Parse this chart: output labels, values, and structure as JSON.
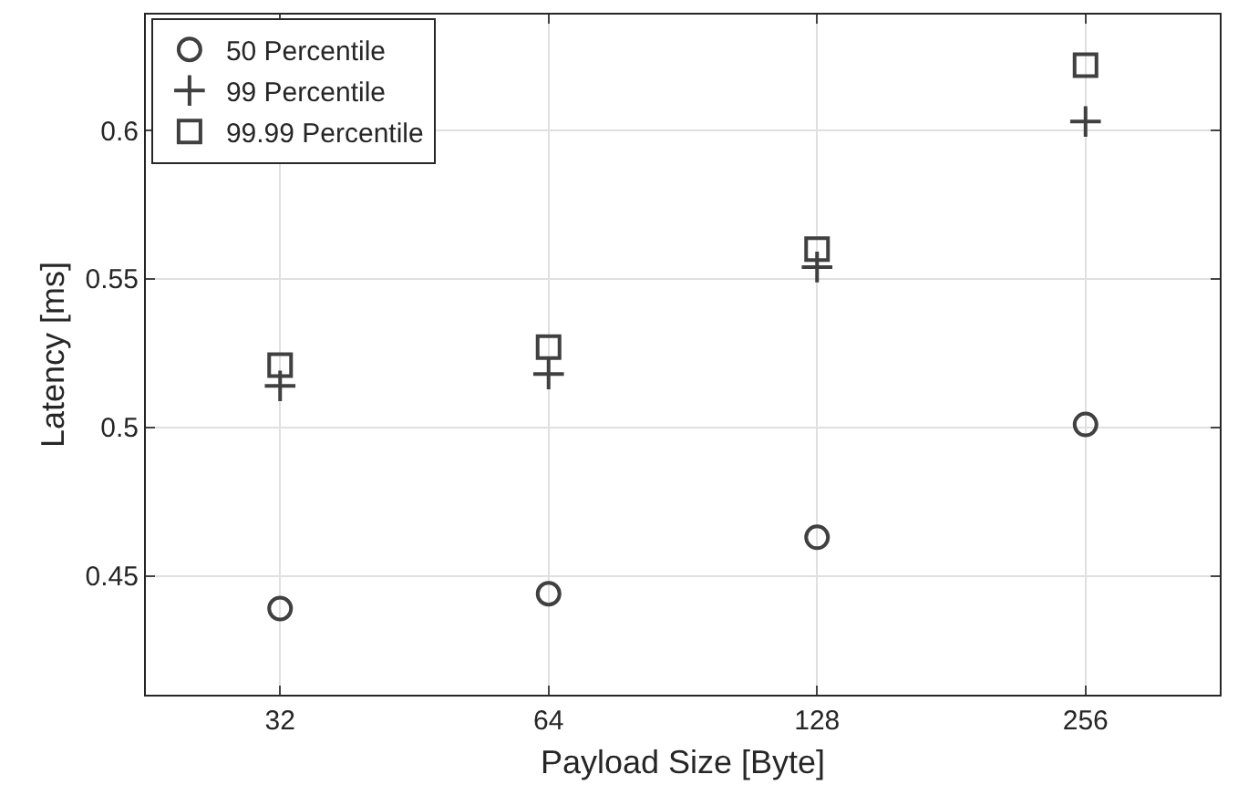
{
  "chart_data": {
    "type": "scatter",
    "xlabel": "Payload Size [Byte]",
    "ylabel": "Latency [ms]",
    "categories": [
      "32",
      "64",
      "128",
      "256"
    ],
    "series": [
      {
        "name": "50 Percentile",
        "color": "#404040",
        "marker": "circle",
        "values": [
          0.439,
          0.444,
          0.463,
          0.501
        ]
      },
      {
        "name": "99 Percentile",
        "color": "#404040",
        "marker": "cross",
        "values": [
          0.514,
          0.518,
          0.554,
          0.603
        ]
      },
      {
        "name": "99.99 Percentile",
        "color": "#404040",
        "marker": "square",
        "values": [
          0.521,
          0.527,
          0.56,
          0.622
        ]
      }
    ],
    "ylim": [
      0.41,
      0.639
    ],
    "yticks": [
      0.45,
      0.5,
      0.55,
      0.6
    ],
    "grid": true,
    "legend": "top left"
  }
}
